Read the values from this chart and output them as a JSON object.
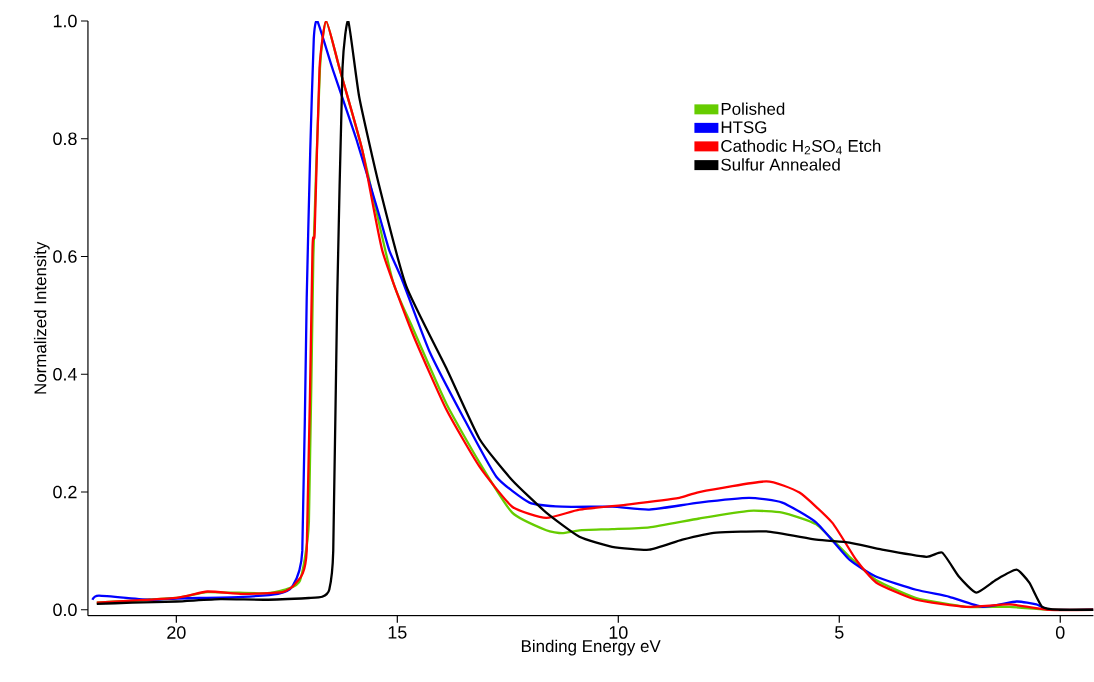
{
  "chart_data": {
    "type": "line",
    "xlabel": "Binding Energy eV",
    "ylabel": "Normalized Intensity",
    "xlim": [
      22,
      -0.75
    ],
    "ylim": [
      -0.01,
      1.0
    ],
    "xticks": [
      20,
      15,
      10,
      5,
      0
    ],
    "yticks": [
      {
        "value": 0,
        "label": "0.0"
      },
      {
        "value": 0.2,
        "label": "0.2"
      },
      {
        "value": 0.4,
        "label": "0.4"
      },
      {
        "value": 0.6,
        "label": "0.6"
      },
      {
        "value": 0.8,
        "label": "0.8"
      },
      {
        "value": 1.0,
        "label": "1.0"
      }
    ],
    "grid": false,
    "legend": "top right",
    "marker": "none",
    "line_style": "solid",
    "series": [
      {
        "name": "Polished",
        "color": "#66cc00",
        "x": [
          21.8,
          20,
          19.3,
          18,
          17.5,
          17.2,
          17.0,
          16.9,
          16.75,
          16.61,
          16.31,
          15.79,
          15.11,
          14.66,
          13.89,
          13.14,
          12.4,
          11.63,
          11.27,
          10.88,
          10.14,
          9.3,
          8.17,
          7.04,
          6.29,
          5.52,
          4.77,
          4.16,
          3.26,
          2.13,
          1.15,
          0.25,
          -0.75
        ],
        "values": [
          0.012,
          0.02,
          0.03,
          0.028,
          0.035,
          0.05,
          0.15,
          0.6,
          0.92,
          1.0,
          0.92,
          0.78,
          0.56,
          0.48,
          0.35,
          0.25,
          0.165,
          0.135,
          0.13,
          0.135,
          0.137,
          0.14,
          0.155,
          0.168,
          0.165,
          0.145,
          0.09,
          0.05,
          0.02,
          0.005,
          0.005,
          0,
          0
        ]
      },
      {
        "name": "HTSG",
        "color": "#0000ff",
        "x": [
          21.9,
          21.75,
          20.6,
          20,
          19.48,
          18.5,
          17.7,
          17.38,
          17.15,
          17.05,
          16.97,
          16.89,
          16.81,
          16.47,
          15.93,
          15.41,
          15.18,
          14.89,
          14.28,
          13.53,
          12.76,
          12.01,
          11.27,
          10.14,
          9.3,
          8.17,
          7.04,
          6.29,
          5.52,
          4.77,
          4.16,
          3.26,
          2.51,
          1.76,
          0.99,
          0.54,
          0.25,
          -0.75
        ],
        "values": [
          0.017,
          0.024,
          0.017,
          0.019,
          0.02,
          0.022,
          0.027,
          0.039,
          0.1,
          0.53,
          0.78,
          0.97,
          1.0,
          0.92,
          0.8,
          0.67,
          0.61,
          0.56,
          0.44,
          0.33,
          0.226,
          0.182,
          0.175,
          0.175,
          0.17,
          0.182,
          0.19,
          0.182,
          0.148,
          0.085,
          0.056,
          0.034,
          0.022,
          0.005,
          0.014,
          0.009,
          0,
          0
        ]
      },
      {
        "name": "Cathodic H$_{2}$SO$_{4}$ Etch",
        "color": "#ff0000",
        "x": [
          21.8,
          20,
          19.3,
          18.5,
          17.6,
          17.3,
          17.05,
          16.92,
          16.87,
          16.76,
          16.61,
          16.31,
          15.79,
          15.34,
          14.66,
          13.89,
          13.14,
          12.4,
          11.63,
          10.88,
          9.75,
          8.62,
          8.17,
          6.65,
          5.9,
          5.16,
          4.62,
          4.16,
          3.26,
          2.13,
          1.15,
          0.25,
          -0.75
        ],
        "values": [
          0.012,
          0.02,
          0.031,
          0.027,
          0.03,
          0.045,
          0.1,
          0.61,
          0.64,
          0.92,
          1.0,
          0.92,
          0.78,
          0.61,
          0.47,
          0.34,
          0.243,
          0.175,
          0.156,
          0.17,
          0.179,
          0.19,
          0.2,
          0.218,
          0.199,
          0.148,
          0.085,
          0.046,
          0.017,
          0.005,
          0.009,
          0,
          0
        ]
      },
      {
        "name": "Sulfur Annealed",
        "color": "#000000",
        "x": [
          21.8,
          21,
          20,
          19,
          18,
          17,
          16.7,
          16.54,
          16.45,
          16.36,
          16.24,
          16.11,
          15.86,
          15.41,
          14.8,
          13.89,
          13.14,
          12.4,
          11.63,
          10.88,
          10.14,
          9.3,
          8.55,
          7.78,
          6.65,
          5.52,
          4.77,
          4.03,
          3.03,
          2.67,
          2.29,
          1.9,
          1.45,
          0.99,
          0.7,
          0.41,
          0.02,
          -0.75
        ],
        "values": [
          0.01,
          0.012,
          0.014,
          0.018,
          0.017,
          0.02,
          0.022,
          0.034,
          0.1,
          0.53,
          0.92,
          1.0,
          0.87,
          0.72,
          0.55,
          0.41,
          0.29,
          0.22,
          0.165,
          0.124,
          0.107,
          0.102,
          0.119,
          0.131,
          0.133,
          0.119,
          0.114,
          0.102,
          0.09,
          0.097,
          0.056,
          0.029,
          0.051,
          0.068,
          0.046,
          0.005,
          0,
          0
        ]
      }
    ]
  }
}
